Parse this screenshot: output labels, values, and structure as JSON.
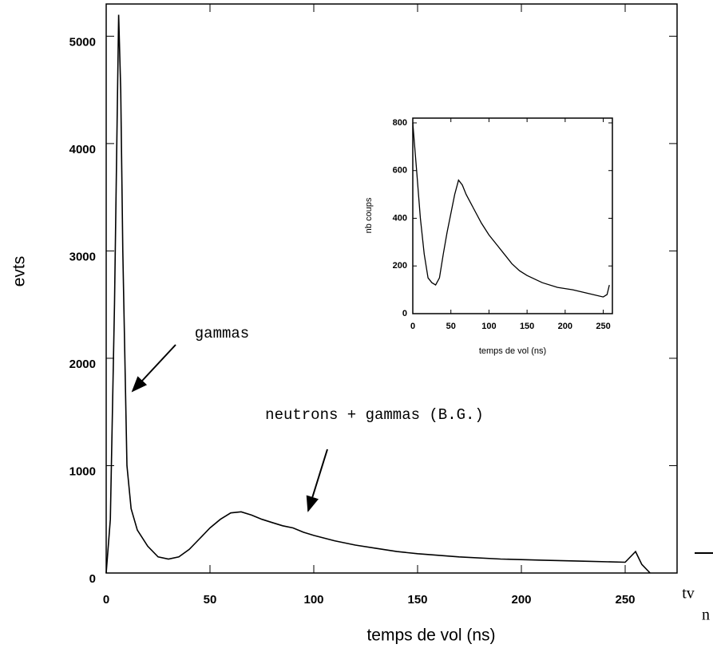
{
  "chart_data": [
    {
      "type": "line",
      "x_label": "temps de vol (ns)",
      "y_label": "evts",
      "xlim": [
        0,
        275
      ],
      "ylim": [
        0,
        5300
      ],
      "xticks": [
        0,
        50,
        100,
        150,
        200,
        250
      ],
      "yticks": [
        0,
        1000,
        2000,
        3000,
        4000,
        5000
      ],
      "annotations": [
        {
          "text": "gammas"
        },
        {
          "text": "neutrons + gammas (B.G.)"
        },
        {
          "text": "tv"
        },
        {
          "text": "n"
        }
      ],
      "series": [
        {
          "color": "#000000",
          "x": [
            0,
            2,
            4,
            6,
            7,
            8,
            9,
            10,
            12,
            15,
            20,
            25,
            30,
            35,
            40,
            45,
            50,
            55,
            60,
            65,
            70,
            75,
            80,
            85,
            90,
            95,
            100,
            110,
            120,
            130,
            140,
            150,
            170,
            190,
            210,
            230,
            250,
            255,
            258,
            262
          ],
          "values": [
            0,
            500,
            2500,
            5200,
            4500,
            3000,
            2000,
            1000,
            600,
            400,
            250,
            150,
            130,
            150,
            220,
            320,
            420,
            500,
            560,
            570,
            540,
            500,
            470,
            440,
            420,
            380,
            350,
            300,
            260,
            230,
            200,
            180,
            150,
            130,
            120,
            110,
            100,
            200,
            80,
            0
          ]
        }
      ]
    },
    {
      "type": "line",
      "x_label": "temps de vol (ns)",
      "y_label": "nb coups",
      "xlim": [
        0,
        262
      ],
      "ylim": [
        0,
        820
      ],
      "xticks": [
        0,
        50,
        100,
        150,
        200,
        250
      ],
      "yticks": [
        0,
        200,
        400,
        600,
        800
      ],
      "series": [
        {
          "color": "#000000",
          "x": [
            0,
            5,
            10,
            15,
            20,
            25,
            30,
            35,
            40,
            45,
            50,
            55,
            60,
            65,
            70,
            80,
            90,
            100,
            110,
            120,
            130,
            140,
            150,
            170,
            190,
            210,
            230,
            250,
            255,
            258
          ],
          "values": [
            800,
            600,
            400,
            250,
            150,
            130,
            120,
            150,
            250,
            340,
            420,
            500,
            560,
            540,
            500,
            440,
            380,
            330,
            290,
            250,
            210,
            180,
            160,
            130,
            110,
            100,
            85,
            70,
            80,
            120
          ]
        }
      ]
    }
  ]
}
